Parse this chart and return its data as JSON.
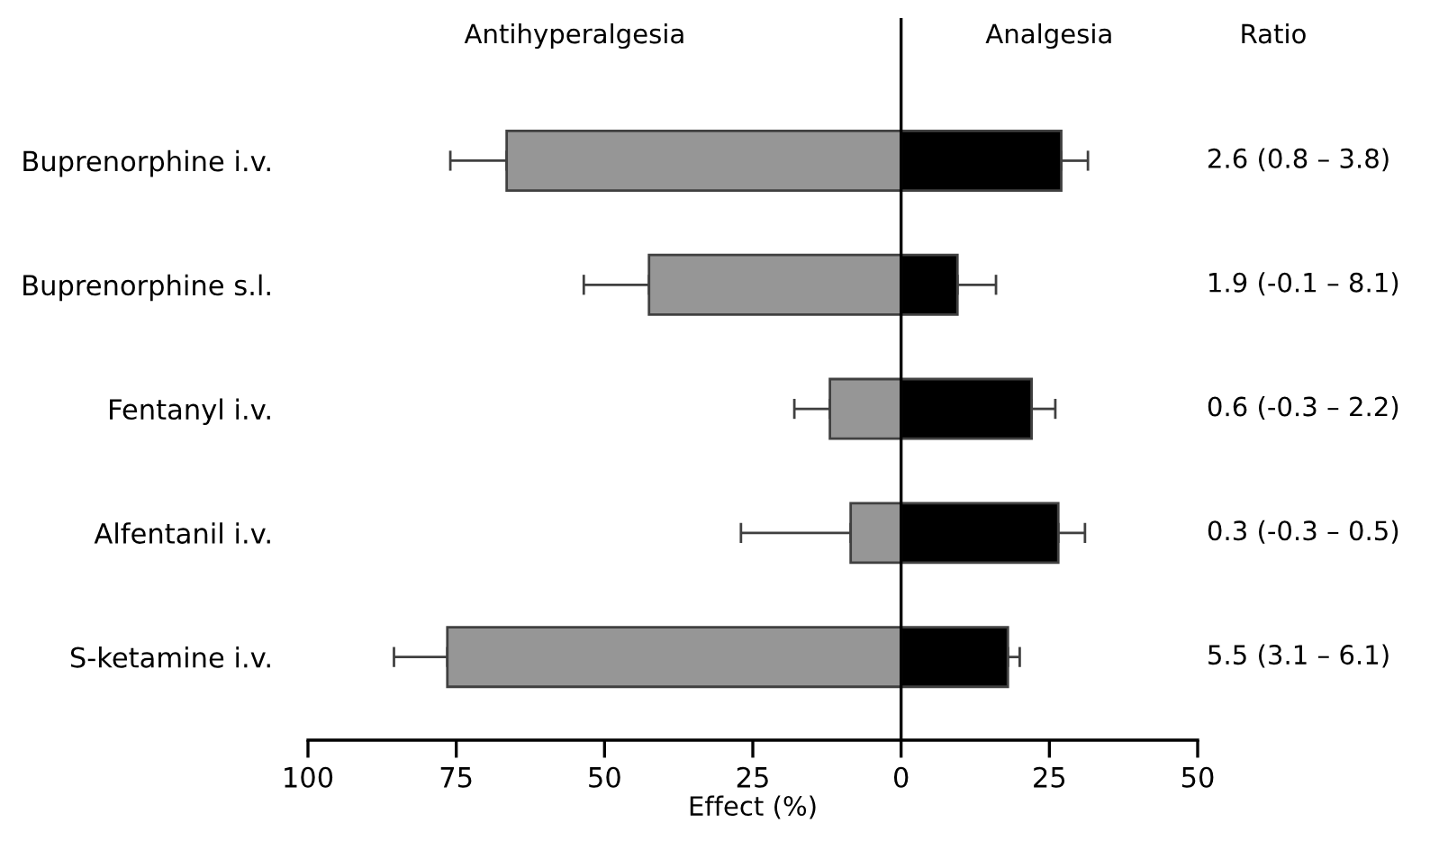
{
  "chart_data": {
    "type": "bar",
    "orientation": "horizontal",
    "xlabel": "Effect (%)",
    "categories": [
      "Buprenorphine i.v.",
      "Buprenorphine s.l.",
      "Fentanyl i.v.",
      "Alfentanil i.v.",
      "S-ketamine i.v."
    ],
    "series": [
      {
        "name": "Antihyperalgesia",
        "color": "#969696",
        "values": [
          -66.5,
          -42.5,
          -12,
          -8.5,
          -76.5
        ],
        "errors": [
          [
            -76,
            -66.5
          ],
          [
            -53.5,
            -42.5
          ],
          [
            -18,
            -12
          ],
          [
            -27,
            -8.5
          ],
          [
            -85.5,
            -76.5
          ]
        ]
      },
      {
        "name": "Analgesia",
        "color": "#000000",
        "values": [
          27,
          9.5,
          22,
          26.5,
          18
        ],
        "errors": [
          [
            27,
            31.5
          ],
          [
            9.5,
            16
          ],
          [
            22,
            26
          ],
          [
            26.5,
            31
          ],
          [
            18,
            20
          ]
        ]
      }
    ],
    "xlim": [
      -100,
      50
    ],
    "xticks": [
      {
        "value": -100,
        "label": "100"
      },
      {
        "value": -75,
        "label": "75"
      },
      {
        "value": -50,
        "label": "50"
      },
      {
        "value": -25,
        "label": "25"
      },
      0,
      25,
      50
    ],
    "ref_lines": [
      {
        "axis": "x",
        "value": 0,
        "color": "#000000"
      }
    ],
    "grid": false,
    "stacked": true,
    "annotations": [
      "Ratio",
      "2.6 (0.8 – 3.8)",
      "1.9 (-0.1 – 8.1)",
      "0.6 (-0.3 – 2.2)",
      "0.3 (-0.3 – 0.5)",
      "5.5 (3.1 – 6.1)"
    ]
  }
}
